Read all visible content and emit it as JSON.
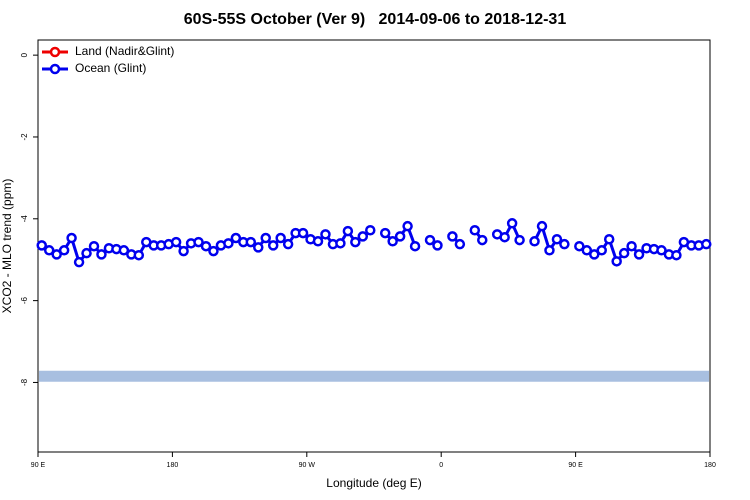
{
  "chart_data": {
    "type": "line",
    "title": "60S-55S October (Ver 9)   2014-09-06 to 2018-12-31",
    "xlabel": "Longitude (deg E)",
    "ylabel": "XCO2 - MLO trend (ppm)",
    "xlim": [
      90,
      540
    ],
    "ylim": [
      -9.7,
      0.37
    ],
    "xticks": [
      {
        "value": 90,
        "label": "90 E"
      },
      180,
      {
        "value": 270,
        "label": "90 W"
      },
      {
        "value": 360,
        "label": "0"
      },
      {
        "value": 450,
        "label": "90 E"
      },
      {
        "value": 540,
        "label": "180"
      }
    ],
    "yticks": [
      0,
      -2,
      -4,
      -6,
      -8
    ],
    "legend": "top-left",
    "band": {
      "value": -7.85,
      "color": "#a8bfe0"
    },
    "x": [
      92.5,
      97.5,
      102.5,
      107.5,
      112.5,
      117.5,
      122.5,
      127.5,
      132.5,
      137.5,
      142.5,
      147.5,
      152.5,
      157.5,
      162.5,
      167.5,
      172.5,
      177.5,
      182.5,
      187.5,
      192.5,
      197.5,
      202.5,
      207.5,
      212.5,
      217.5,
      222.5,
      227.5,
      232.5,
      237.5,
      242.5,
      247.5,
      252.5,
      257.5,
      262.5,
      267.5,
      272.5,
      277.5,
      282.5,
      287.5,
      292.5,
      297.5,
      302.5,
      307.5,
      312.5,
      317.5,
      322.5,
      327.5,
      332.5,
      337.5,
      342.5,
      347.5,
      352.5,
      357.5,
      362.5,
      367.5,
      372.5,
      377.5,
      382.5,
      387.5,
      392.5,
      397.5,
      402.5,
      407.5,
      412.5,
      417.5,
      422.5,
      427.5,
      432.5,
      437.5,
      442.5,
      447.5,
      452.5,
      457.5,
      462.5,
      467.5,
      472.5,
      477.5,
      482.5,
      487.5,
      492.5,
      497.5,
      502.5,
      507.5,
      512.5,
      517.5,
      522.5,
      527.5,
      532.5,
      537.5
    ],
    "series": [
      {
        "name": "Land (Nadir&Glint)",
        "color": "#ee0000",
        "values": [
          null,
          null,
          null,
          null,
          null,
          null,
          null,
          null,
          null,
          null,
          null,
          null,
          null,
          null,
          null,
          null,
          null,
          null,
          null,
          null,
          null,
          null,
          null,
          null,
          null,
          null,
          null,
          null,
          null,
          null,
          null,
          null,
          null,
          null,
          null,
          null,
          null,
          null,
          null,
          null,
          null,
          null,
          null,
          null,
          null,
          null,
          null,
          null,
          null,
          null,
          null,
          null,
          null,
          null,
          null,
          null,
          null,
          null,
          null,
          null,
          null,
          null,
          null,
          null,
          null,
          null,
          null,
          null,
          null,
          null,
          null,
          null,
          null,
          null,
          null,
          null,
          null,
          null,
          null,
          null,
          null,
          null,
          null,
          null,
          null,
          null,
          null,
          null,
          null,
          null
        ]
      },
      {
        "name": "Ocean (Glint)",
        "color": "#0000ee",
        "values": [
          -4.65,
          -4.77,
          -4.87,
          -4.77,
          -4.47,
          -5.06,
          -4.84,
          -4.67,
          -4.87,
          -4.72,
          -4.74,
          -4.77,
          -4.87,
          -4.89,
          -4.57,
          -4.65,
          -4.65,
          -4.62,
          -4.57,
          -4.79,
          -4.6,
          -4.57,
          -4.67,
          -4.79,
          -4.65,
          -4.6,
          -4.47,
          -4.57,
          -4.57,
          -4.7,
          -4.47,
          -4.65,
          -4.47,
          -4.62,
          -4.35,
          -4.35,
          -4.5,
          -4.55,
          -4.38,
          -4.62,
          -4.6,
          -4.3,
          -4.57,
          -4.43,
          -4.28,
          null,
          -4.35,
          -4.55,
          -4.43,
          -4.18,
          -4.67,
          null,
          -4.52,
          -4.65,
          null,
          -4.43,
          -4.62,
          null,
          -4.28,
          -4.52,
          null,
          -4.38,
          -4.45,
          -4.11,
          -4.52,
          null,
          -4.55,
          -4.18,
          -4.77,
          -4.5,
          -4.62,
          null,
          -4.67,
          -4.77,
          -4.87,
          -4.77,
          -4.5,
          -5.04,
          -4.84,
          -4.67,
          -4.87,
          -4.72,
          -4.74,
          -4.77,
          -4.87,
          -4.89,
          -4.57,
          -4.65,
          -4.65,
          -4.62
        ]
      }
    ]
  }
}
